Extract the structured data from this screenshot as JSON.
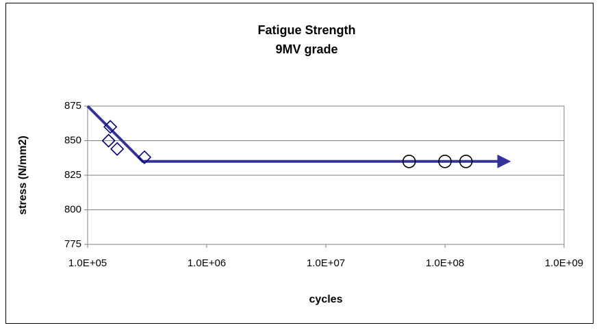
{
  "chart_data": {
    "type": "scatter",
    "title": "Fatigue Strength",
    "subtitle": "9MV grade",
    "xlabel": "cycles",
    "ylabel": "stress (N/mm2)",
    "xscale": "log",
    "xlim": [
      100000,
      1000000000
    ],
    "xticks": [
      {
        "value": 100000,
        "label": "1.0E+05"
      },
      {
        "value": 1000000,
        "label": "1.0E+06"
      },
      {
        "value": 10000000,
        "label": "1.0E+07"
      },
      {
        "value": 100000000,
        "label": "1.0E+08"
      },
      {
        "value": 1000000000,
        "label": "1.0E+09"
      }
    ],
    "ylim": [
      775,
      875
    ],
    "yticks": [
      775,
      800,
      825,
      850,
      875
    ],
    "grid": true,
    "series": [
      {
        "marker": "diamond",
        "color": "#000080",
        "x": [
          155000,
          150000,
          177000,
          300000
        ],
        "values": [
          860,
          850,
          844,
          838
        ]
      },
      {
        "marker": "circle",
        "color": "#000000",
        "x": [
          50000000,
          100000000,
          150000000
        ],
        "values": [
          835,
          835,
          835
        ]
      },
      {
        "marker": "line-arrow",
        "color": "#333399",
        "x": [
          100000,
          290000,
          290000000
        ],
        "values": [
          875,
          835,
          835
        ]
      }
    ]
  }
}
